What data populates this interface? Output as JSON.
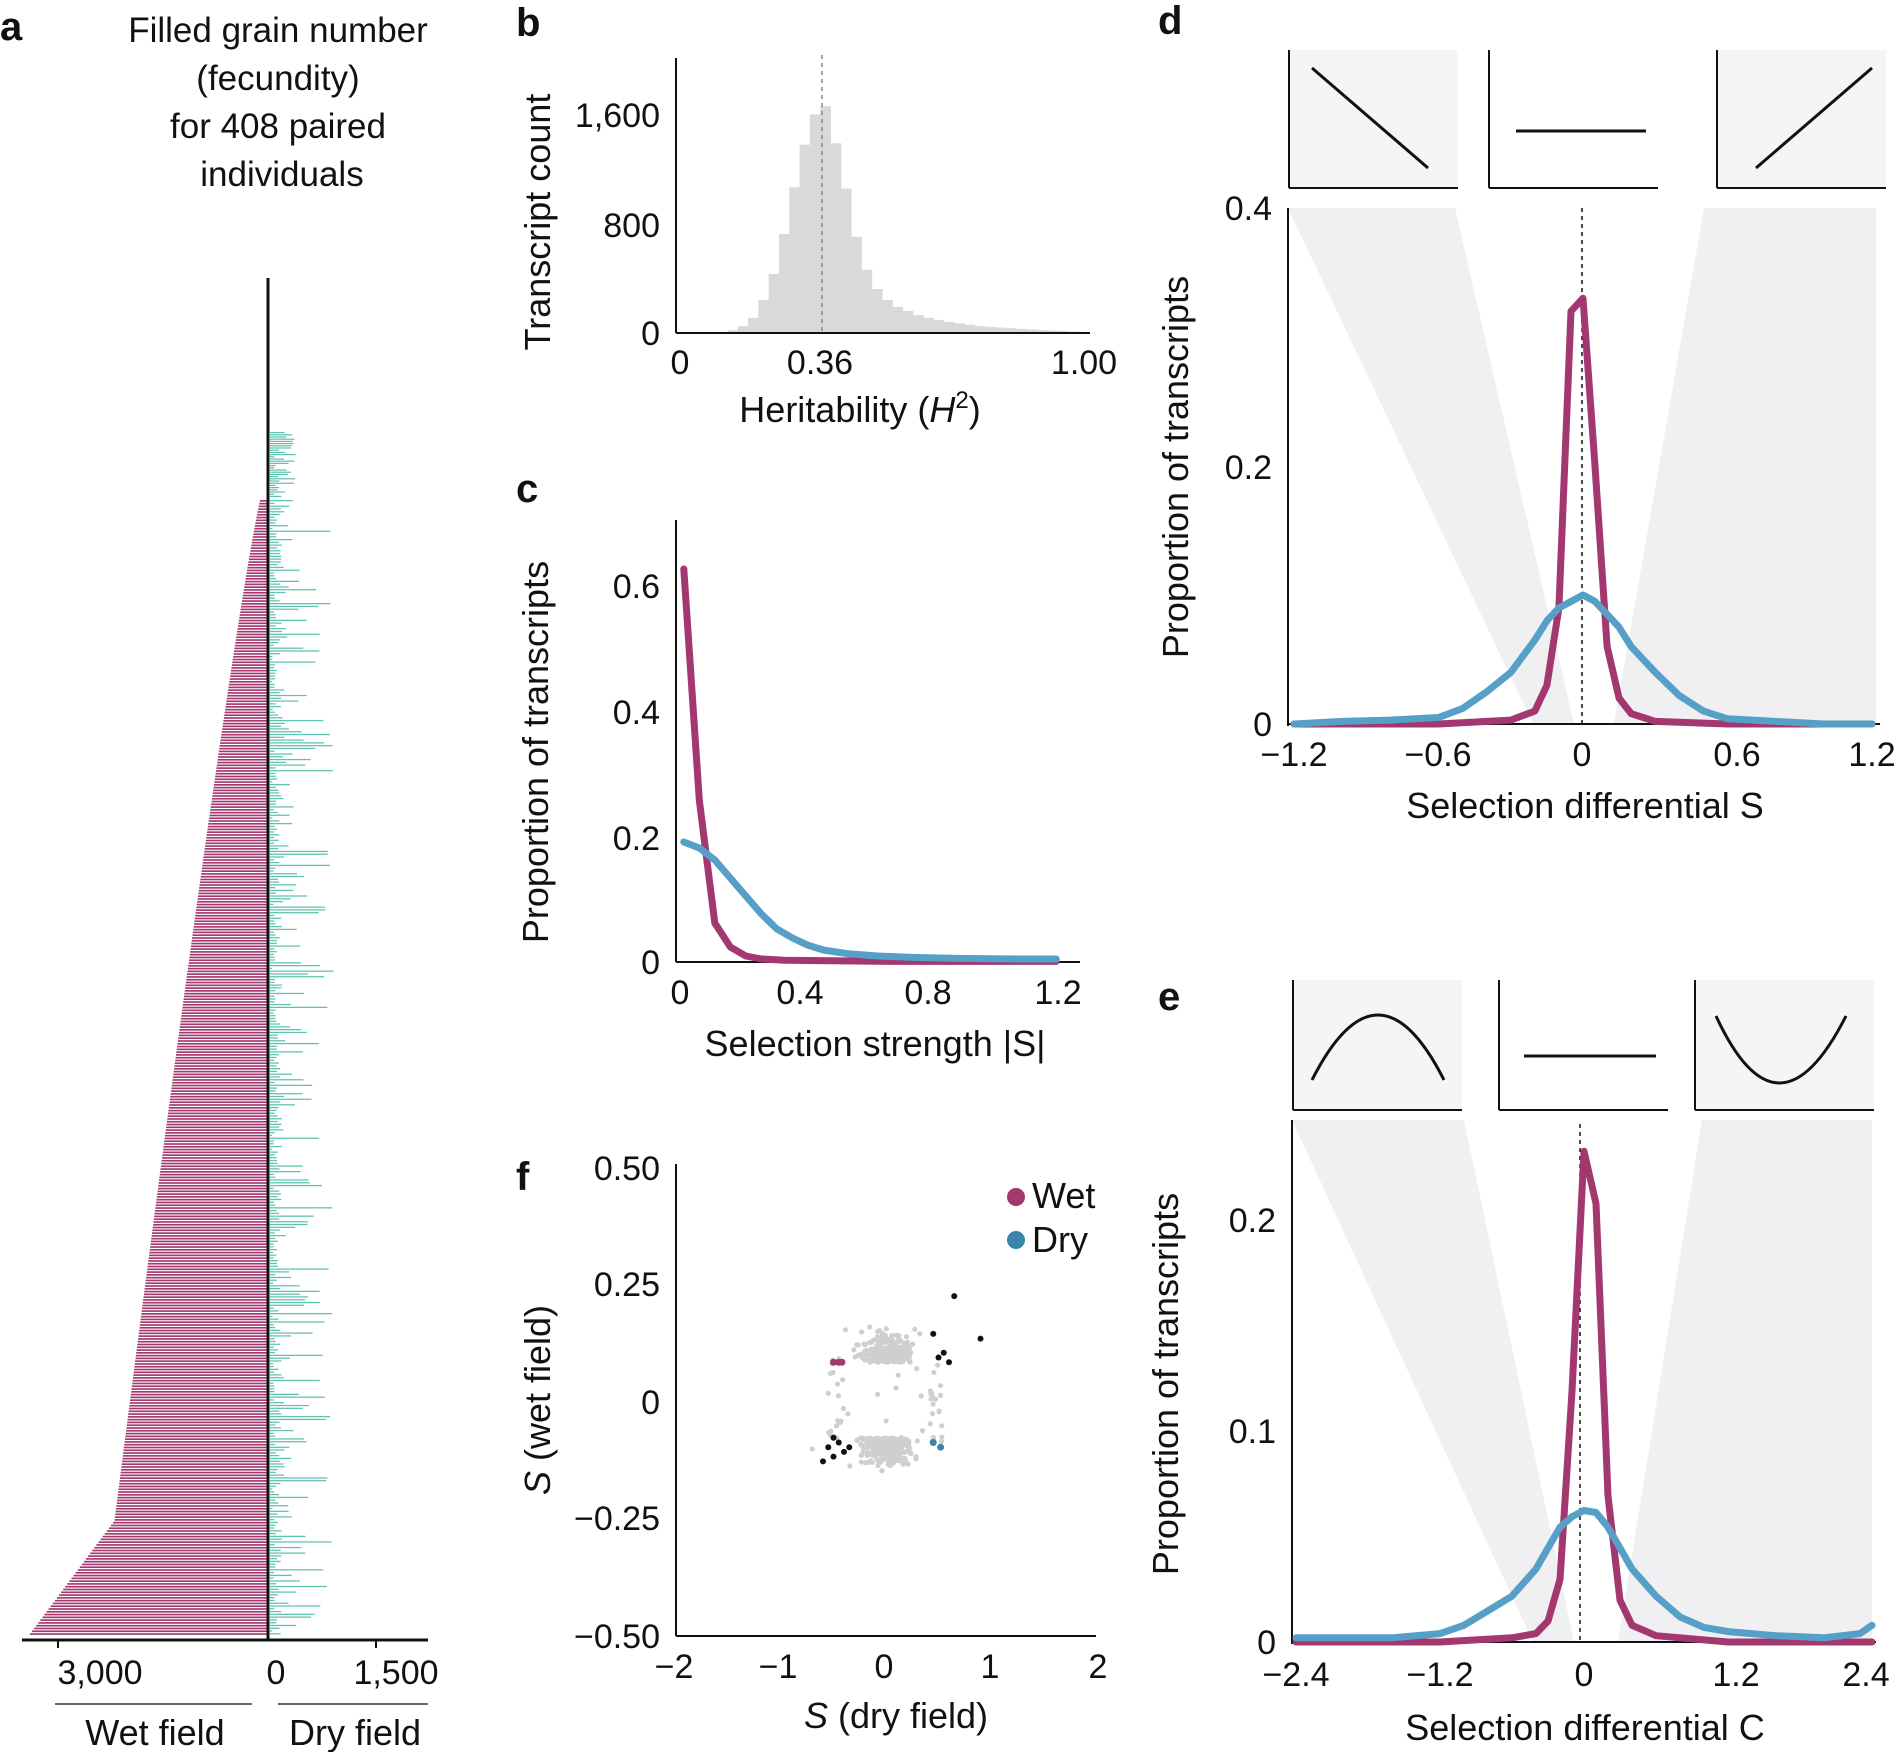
{
  "colors": {
    "wet": "#a2386f",
    "dry": "#56a0c8",
    "bars_wet": "#a2386f",
    "bars_dry": "#5ec2b0",
    "hist": "#d9d9d9",
    "shade": "#f0f0f2",
    "gray_points": "#cfcfcf"
  },
  "panel_labels": {
    "a": "a",
    "b": "b",
    "c": "c",
    "d": "d",
    "e": "e",
    "f": "f"
  },
  "panel_a": {
    "title_lines": [
      "Filled grain number",
      "(fecundity)",
      "for 408 paired",
      "individuals"
    ],
    "tick_left": "3,000",
    "tick_zero": "0",
    "tick_right": "1,500",
    "label_wet": "Wet field",
    "label_dry": "Dry field"
  },
  "chart_data": [
    {
      "id": "b",
      "type": "bar",
      "xlabel_pre": "Heritability (",
      "xlabel_var": "H",
      "xlabel_sup": "2",
      "xlabel_post": ")",
      "ylabel": "Transcript count",
      "xticks": [
        "0",
        "0.36",
        "1.00"
      ],
      "yticks": [
        "0",
        "800",
        "1,600"
      ],
      "xlim": [
        0,
        1
      ],
      "ylim": [
        0,
        2000
      ],
      "marker": 0.36,
      "bin_width": 0.025,
      "bin_starts": [
        0.0,
        0.025,
        0.05,
        0.075,
        0.1,
        0.125,
        0.15,
        0.175,
        0.2,
        0.225,
        0.25,
        0.275,
        0.3,
        0.325,
        0.35,
        0.375,
        0.4,
        0.425,
        0.45,
        0.475,
        0.5,
        0.525,
        0.55,
        0.575,
        0.6,
        0.625,
        0.65,
        0.675,
        0.7,
        0.725,
        0.75,
        0.775,
        0.8,
        0.825,
        0.85,
        0.875,
        0.9,
        0.925,
        0.95,
        0.975
      ],
      "values": [
        0,
        0,
        0,
        0,
        5,
        20,
        50,
        110,
        240,
        430,
        720,
        1060,
        1370,
        1590,
        1650,
        1380,
        1050,
        700,
        460,
        320,
        240,
        190,
        160,
        130,
        110,
        95,
        80,
        70,
        60,
        50,
        45,
        40,
        35,
        30,
        25,
        22,
        18,
        14,
        10,
        6
      ]
    },
    {
      "id": "c",
      "type": "line",
      "xlabel": "Selection strength |S|",
      "ylabel": "Proportion of transcripts",
      "xticks": [
        "0",
        "0.4",
        "0.8",
        "1.2"
      ],
      "yticks": [
        "0",
        "0.2",
        "0.4",
        "0.6"
      ],
      "xlim": [
        0,
        1.25
      ],
      "ylim": [
        0,
        0.7
      ],
      "series": [
        {
          "name": "Wet",
          "x": [
            0.025,
            0.075,
            0.125,
            0.175,
            0.225,
            0.275,
            0.35,
            0.5,
            0.7,
            1.0,
            1.225
          ],
          "values": [
            0.655,
            0.27,
            0.065,
            0.025,
            0.01,
            0.005,
            0.003,
            0.002,
            0.001,
            0.001,
            0.001
          ]
        },
        {
          "name": "Dry",
          "x": [
            0.025,
            0.075,
            0.125,
            0.175,
            0.225,
            0.275,
            0.325,
            0.375,
            0.425,
            0.475,
            0.55,
            0.65,
            0.75,
            0.9,
            1.1,
            1.225
          ],
          "values": [
            0.2,
            0.19,
            0.17,
            0.14,
            0.11,
            0.08,
            0.055,
            0.04,
            0.028,
            0.02,
            0.014,
            0.01,
            0.008,
            0.006,
            0.005,
            0.005
          ]
        }
      ]
    },
    {
      "id": "d",
      "type": "line",
      "xlabel": "Selection differential S",
      "ylabel": "Proportion of transcripts",
      "xticks": [
        "−1.2",
        "−0.6",
        "0",
        "0.6",
        "1.2"
      ],
      "yticks": [
        "0",
        "0.2",
        "0.4"
      ],
      "xlim": [
        -1.2,
        1.2
      ],
      "ylim": [
        0,
        0.4
      ],
      "series": [
        {
          "name": "Wet",
          "x": [
            -1.2,
            -0.6,
            -0.3,
            -0.2,
            -0.15,
            -0.1,
            -0.05,
            0.0,
            0.05,
            0.1,
            0.15,
            0.2,
            0.3,
            0.6,
            1.2
          ],
          "values": [
            0,
            0,
            0.003,
            0.01,
            0.03,
            0.09,
            0.32,
            0.33,
            0.2,
            0.06,
            0.02,
            0.008,
            0.002,
            0,
            0
          ]
        },
        {
          "name": "Dry",
          "x": [
            -1.2,
            -1.0,
            -0.8,
            -0.6,
            -0.5,
            -0.4,
            -0.3,
            -0.2,
            -0.15,
            -0.1,
            -0.05,
            0.0,
            0.05,
            0.1,
            0.15,
            0.2,
            0.3,
            0.4,
            0.5,
            0.6,
            0.8,
            1.0,
            1.2
          ],
          "values": [
            0,
            0.002,
            0.003,
            0.005,
            0.012,
            0.025,
            0.04,
            0.065,
            0.08,
            0.09,
            0.095,
            0.1,
            0.095,
            0.085,
            0.075,
            0.06,
            0.04,
            0.022,
            0.01,
            0.004,
            0.002,
            0,
            0
          ]
        }
      ]
    },
    {
      "id": "e",
      "type": "line",
      "xlabel": "Selection differential C",
      "ylabel": "Proportion of transcripts",
      "xticks": [
        "−2.4",
        "−1.2",
        "0",
        "1.2",
        "2.4"
      ],
      "yticks": [
        "0",
        "0.1",
        "0.2"
      ],
      "xlim": [
        -2.4,
        2.4
      ],
      "ylim": [
        0,
        0.25
      ],
      "series": [
        {
          "name": "Wet",
          "x": [
            -2.4,
            -1.2,
            -0.6,
            -0.4,
            -0.3,
            -0.2,
            -0.1,
            0.0,
            0.1,
            0.2,
            0.3,
            0.4,
            0.6,
            1.2,
            2.4
          ],
          "values": [
            0,
            0,
            0.002,
            0.004,
            0.01,
            0.03,
            0.12,
            0.235,
            0.21,
            0.07,
            0.02,
            0.008,
            0.003,
            0,
            0
          ]
        },
        {
          "name": "Dry",
          "x": [
            -2.4,
            -1.6,
            -1.2,
            -1.0,
            -0.8,
            -0.6,
            -0.4,
            -0.3,
            -0.2,
            -0.1,
            0.0,
            0.1,
            0.2,
            0.3,
            0.4,
            0.6,
            0.8,
            1.0,
            1.2,
            1.6,
            2.0,
            2.3,
            2.4
          ],
          "values": [
            0.002,
            0.002,
            0.004,
            0.008,
            0.015,
            0.022,
            0.035,
            0.045,
            0.055,
            0.06,
            0.063,
            0.062,
            0.055,
            0.045,
            0.035,
            0.022,
            0.012,
            0.007,
            0.005,
            0.003,
            0.002,
            0.004,
            0.008
          ]
        }
      ]
    },
    {
      "id": "f",
      "type": "scatter",
      "xlabel_var": "S",
      "xlabel_post": " (dry field)",
      "ylabel_var": "S",
      "ylabel_post": " (wet field)",
      "xticks": [
        "−2",
        "−1",
        "0",
        "1",
        "2"
      ],
      "yticks": [
        "−0.50",
        "−0.25",
        "0",
        "0.25",
        "0.50"
      ],
      "xlim": [
        -2,
        2
      ],
      "ylim": [
        -0.5,
        0.5
      ],
      "legend": [
        "Wet",
        "Dry"
      ],
      "legend_position": "top-right",
      "highlight_black": [
        [
          0.45,
          0.14
        ],
        [
          0.55,
          0.1
        ],
        [
          0.6,
          0.08
        ],
        [
          0.65,
          0.22
        ],
        [
          0.9,
          0.13
        ],
        [
          0.5,
          0.09
        ],
        [
          -0.45,
          -0.09
        ],
        [
          -0.55,
          -0.1
        ],
        [
          -0.5,
          -0.12
        ],
        [
          -0.4,
          -0.11
        ],
        [
          -0.35,
          -0.1
        ],
        [
          -0.5,
          -0.08
        ],
        [
          -0.6,
          -0.13
        ]
      ],
      "highlight_wet": [
        [
          -0.5,
          0.08
        ],
        [
          -0.45,
          0.08
        ],
        [
          -0.42,
          0.08
        ]
      ],
      "highlight_dry": [
        [
          0.45,
          -0.09
        ],
        [
          0.52,
          -0.1
        ]
      ]
    }
  ]
}
